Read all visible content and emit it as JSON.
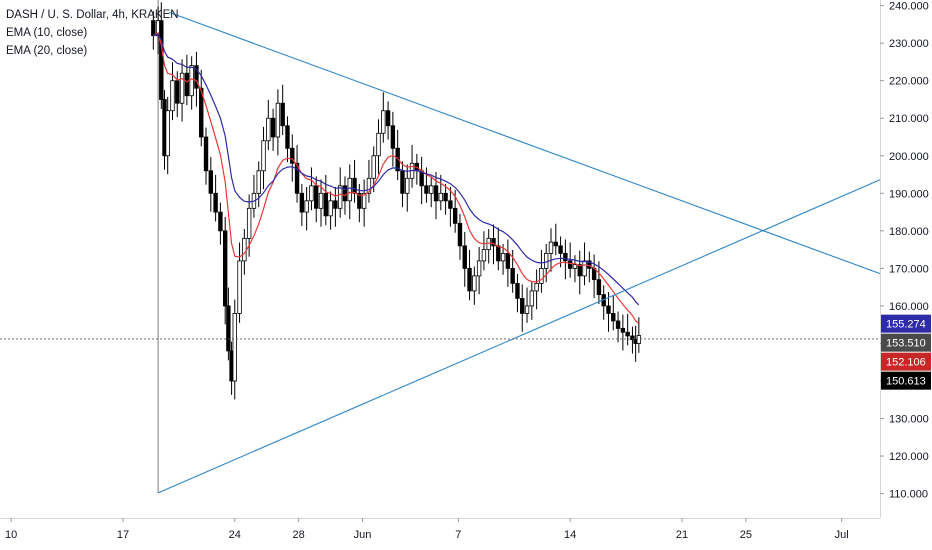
{
  "chart_data": {
    "type": "candlestick",
    "title": "DASH / U. S. Dollar, 4h, KRAKEN",
    "indicators": [
      {
        "name": "EMA (10, close)",
        "color": "#e8393a"
      },
      {
        "name": "EMA (20, close)",
        "color": "#2d2ba8"
      }
    ],
    "y_axis": {
      "ticks": [
        "240.000",
        "230.000",
        "220.000",
        "210.000",
        "200.000",
        "190.000",
        "180.000",
        "170.000",
        "160.000",
        "150.000",
        "140.000",
        "130.000",
        "120.000",
        "110.000"
      ],
      "tick_values": [
        240,
        230,
        220,
        210,
        200,
        190,
        180,
        170,
        160,
        150,
        140,
        130,
        120,
        110
      ],
      "range": [
        103.5,
        241.5
      ],
      "side": "right"
    },
    "x_axis": {
      "ticks": [
        "10",
        "17",
        "24",
        "28",
        "Jun",
        "7",
        "14",
        "21",
        "25",
        "Jul"
      ],
      "tick_days": [
        10,
        17,
        24,
        28,
        32,
        38,
        45,
        52,
        56,
        62
      ],
      "range_days": [
        9.3,
        64.4
      ],
      "note_units": "calendar days counted from May 1; Jun = day 32"
    },
    "price_tags": [
      {
        "label": "155.274",
        "value": 155.274,
        "color": "#2d2ba8"
      },
      {
        "label": "153.510",
        "value": 153.51,
        "color": "#4a4a4a"
      },
      {
        "label": "152.106",
        "value": 152.106,
        "color": "#c62828"
      },
      {
        "label": "150.613",
        "value": 150.613,
        "color": "#000000"
      }
    ],
    "last_price_line": 151.2,
    "trendlines": [
      {
        "name": "upper",
        "from": [
          19.9,
          238.2
        ],
        "to": [
          64.4,
          168.6
        ]
      },
      {
        "name": "lower",
        "from": [
          19.2,
          110.2
        ],
        "to": [
          64.4,
          193.6
        ]
      }
    ],
    "vertical_marker_day": 19.2,
    "candle_closes": [
      [
        18.9,
        232
      ],
      [
        19.2,
        236
      ],
      [
        19.4,
        215
      ],
      [
        19.6,
        200
      ],
      [
        19.8,
        212
      ],
      [
        20.1,
        220
      ],
      [
        20.4,
        214
      ],
      [
        20.7,
        222
      ],
      [
        21.0,
        216
      ],
      [
        21.3,
        224
      ],
      [
        21.6,
        218
      ],
      [
        21.9,
        205
      ],
      [
        22.2,
        196
      ],
      [
        22.5,
        190
      ],
      [
        22.8,
        185
      ],
      [
        23.1,
        180
      ],
      [
        23.4,
        160
      ],
      [
        23.6,
        148
      ],
      [
        23.8,
        140
      ],
      [
        24.0,
        158
      ],
      [
        24.3,
        172
      ],
      [
        24.6,
        178
      ],
      [
        24.9,
        186
      ],
      [
        25.2,
        190
      ],
      [
        25.5,
        196
      ],
      [
        25.8,
        204
      ],
      [
        26.1,
        210
      ],
      [
        26.4,
        205
      ],
      [
        26.7,
        214
      ],
      [
        27.0,
        208
      ],
      [
        27.3,
        202
      ],
      [
        27.6,
        198
      ],
      [
        27.9,
        190
      ],
      [
        28.2,
        185
      ],
      [
        28.5,
        188
      ],
      [
        28.8,
        192
      ],
      [
        29.1,
        186
      ],
      [
        29.4,
        190
      ],
      [
        29.7,
        184
      ],
      [
        30.0,
        188
      ],
      [
        30.3,
        186
      ],
      [
        30.6,
        192
      ],
      [
        30.9,
        188
      ],
      [
        31.2,
        194
      ],
      [
        31.5,
        190
      ],
      [
        31.8,
        186
      ],
      [
        32.1,
        190
      ],
      [
        32.4,
        194
      ],
      [
        32.7,
        200
      ],
      [
        33.0,
        206
      ],
      [
        33.3,
        212
      ],
      [
        33.6,
        208
      ],
      [
        33.9,
        202
      ],
      [
        34.2,
        196
      ],
      [
        34.5,
        190
      ],
      [
        34.8,
        194
      ],
      [
        35.1,
        198
      ],
      [
        35.4,
        196
      ],
      [
        35.7,
        192
      ],
      [
        36.0,
        190
      ],
      [
        36.3,
        192
      ],
      [
        36.6,
        188
      ],
      [
        36.9,
        190
      ],
      [
        37.2,
        188
      ],
      [
        37.5,
        186
      ],
      [
        37.8,
        182
      ],
      [
        38.1,
        176
      ],
      [
        38.4,
        170
      ],
      [
        38.7,
        164
      ],
      [
        39.0,
        168
      ],
      [
        39.3,
        172
      ],
      [
        39.6,
        175
      ],
      [
        39.9,
        178
      ],
      [
        40.2,
        176
      ],
      [
        40.5,
        172
      ],
      [
        40.8,
        174
      ],
      [
        41.1,
        170
      ],
      [
        41.4,
        166
      ],
      [
        41.7,
        162
      ],
      [
        42.0,
        158
      ],
      [
        42.3,
        160
      ],
      [
        42.6,
        164
      ],
      [
        42.9,
        166
      ],
      [
        43.2,
        170
      ],
      [
        43.5,
        174
      ],
      [
        43.8,
        177
      ],
      [
        44.1,
        176
      ],
      [
        44.4,
        174
      ],
      [
        44.7,
        172
      ],
      [
        45.0,
        170
      ],
      [
        45.3,
        171
      ],
      [
        45.6,
        168
      ],
      [
        45.9,
        172
      ],
      [
        46.2,
        170
      ],
      [
        46.5,
        167
      ],
      [
        46.8,
        163
      ],
      [
        47.1,
        160
      ],
      [
        47.4,
        158
      ],
      [
        47.7,
        156
      ],
      [
        48.0,
        154
      ],
      [
        48.3,
        153
      ],
      [
        48.6,
        152
      ],
      [
        48.9,
        151
      ],
      [
        49.1,
        150
      ],
      [
        49.3,
        152.1
      ]
    ]
  }
}
